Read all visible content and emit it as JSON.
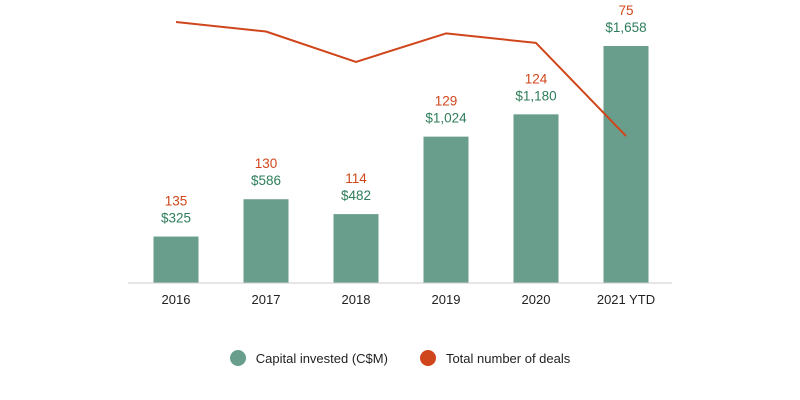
{
  "chart_data": {
    "type": "bar",
    "categories": [
      "2016",
      "2017",
      "2018",
      "2019",
      "2020",
      "2021 YTD"
    ],
    "series": [
      {
        "name": "Capital invested (C$M)",
        "type": "bar",
        "values": [
          325,
          586,
          482,
          1024,
          1180,
          1658
        ],
        "labels": [
          "$325",
          "$586",
          "$482",
          "$1,024",
          "$1,180",
          "$1,658"
        ],
        "color": "#6a9e8c",
        "label_color": "#2e7d5a"
      },
      {
        "name": "Total number of deals",
        "type": "line",
        "values": [
          135,
          130,
          114,
          129,
          124,
          75
        ],
        "labels": [
          "135",
          "130",
          "114",
          "129",
          "124",
          "75"
        ],
        "color": "#d0461c"
      }
    ],
    "bar_ylim": [
      0,
      1658
    ],
    "line_ylim": [
      75,
      135
    ],
    "grid": false,
    "legend_position": "bottom-center",
    "title": "",
    "xlabel": "",
    "ylabel": ""
  }
}
